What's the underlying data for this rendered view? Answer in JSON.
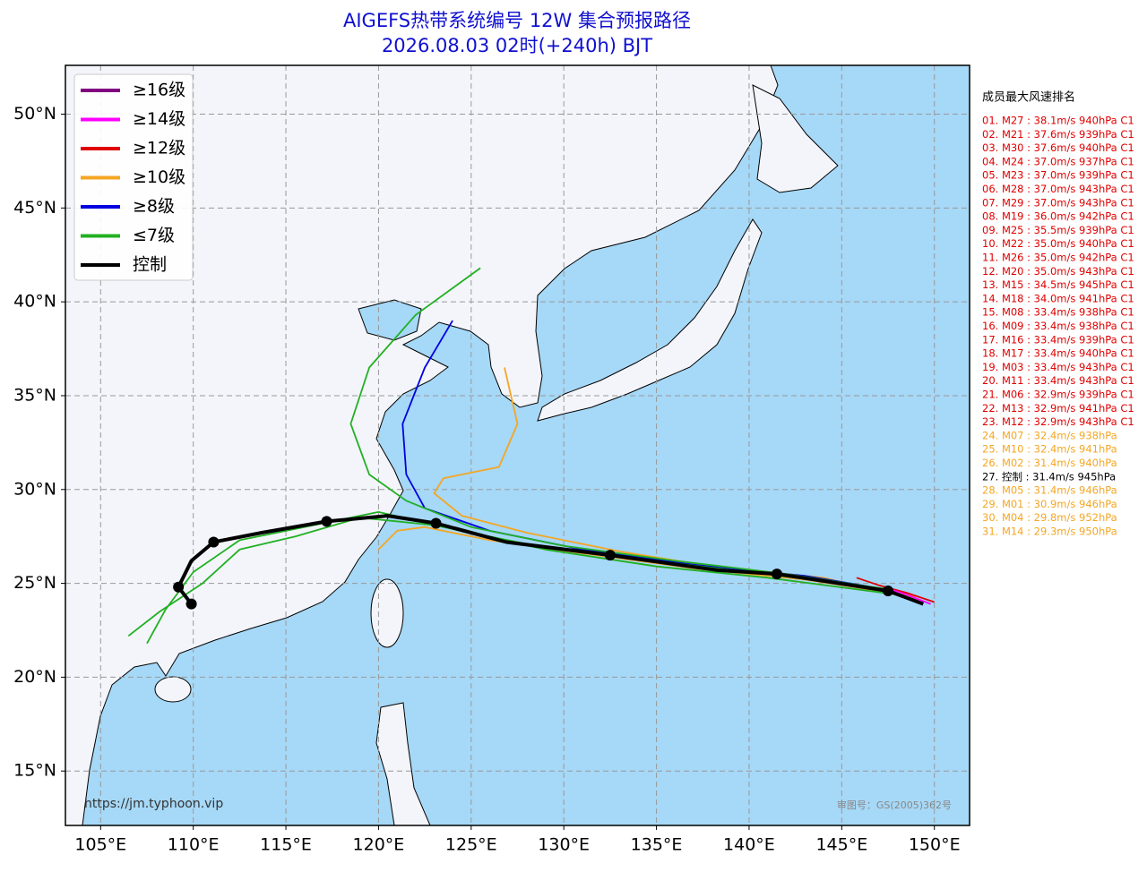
{
  "chart_data": {
    "type": "track-map",
    "title": "AIGEFS热带系统编号 12W 集合预报路径",
    "subtitle": "2026.08.03 02时(+240h) BJT",
    "xlim": [
      103.1,
      151.9
    ],
    "ylim": [
      12.1,
      52.6
    ],
    "xticks": [
      {
        "value": 105,
        "label": "105°E"
      },
      {
        "value": 110,
        "label": "110°E"
      },
      {
        "value": 115,
        "label": "115°E"
      },
      {
        "value": 120,
        "label": "120°E"
      },
      {
        "value": 125,
        "label": "125°E"
      },
      {
        "value": 130,
        "label": "130°E"
      },
      {
        "value": 135,
        "label": "135°E"
      },
      {
        "value": 140,
        "label": "140°E"
      },
      {
        "value": 145,
        "label": "145°E"
      },
      {
        "value": 150,
        "label": "150°E"
      }
    ],
    "yticks": [
      {
        "value": 15,
        "label": "15°N"
      },
      {
        "value": 20,
        "label": "20°N"
      },
      {
        "value": 25,
        "label": "25°N"
      },
      {
        "value": 30,
        "label": "30°N"
      },
      {
        "value": 35,
        "label": "35°N"
      },
      {
        "value": 40,
        "label": "40°N"
      },
      {
        "value": 45,
        "label": "45°N"
      },
      {
        "value": 50,
        "label": "50°N"
      }
    ],
    "grid": true,
    "legend": [
      {
        "name": "≥16级",
        "color": "#800080"
      },
      {
        "name": "≥14级",
        "color": "#ff00ff"
      },
      {
        "name": "≥12级",
        "color": "#e00000"
      },
      {
        "name": "≥10级",
        "color": "#f5a623"
      },
      {
        "name": "≥8级",
        "color": "#0000e0"
      },
      {
        "name": "≤7级",
        "color": "#22b022"
      },
      {
        "name": "控制",
        "color": "#000000"
      }
    ],
    "tracks": [
      {
        "color": "#f5a623",
        "x": [
          149.2,
          144,
          138,
          133,
          128,
          124.5,
          123,
          123.5,
          126.5,
          127.5,
          126.8
        ],
        "values": [
          24.1,
          25.3,
          25.9,
          26.7,
          27.7,
          28.6,
          29.8,
          30.6,
          31.2,
          33.5,
          36.5
        ]
      },
      {
        "color": "#f5a623",
        "x": [
          149,
          143,
          137,
          131,
          126,
          122.5,
          121,
          120
        ],
        "values": [
          24.3,
          25.2,
          25.8,
          26.6,
          27.3,
          28.0,
          27.8,
          26.8
        ]
      },
      {
        "color": "#0000e0",
        "x": [
          148.5,
          143,
          137,
          131,
          126,
          122.5,
          121.5,
          121.3,
          122.5,
          124
        ],
        "values": [
          24.5,
          25.4,
          26.0,
          26.8,
          27.8,
          29.0,
          30.8,
          33.5,
          36.5,
          39.0
        ]
      },
      {
        "color": "#22b022",
        "x": [
          148,
          142,
          136,
          130,
          125,
          121.5,
          119.5,
          118.5,
          119.5,
          122,
          125.5
        ],
        "values": [
          24.6,
          25.5,
          26.2,
          27.0,
          28.0,
          29.4,
          30.8,
          33.5,
          36.5,
          39.3,
          41.8
        ]
      },
      {
        "color": "#22b022",
        "x": [
          148,
          141,
          135,
          129,
          124,
          120,
          116,
          112.5,
          110,
          108.5,
          107.5
        ],
        "values": [
          24.4,
          25.3,
          25.9,
          26.8,
          27.9,
          28.8,
          28.0,
          27.3,
          25.6,
          23.6,
          21.8
        ]
      },
      {
        "color": "#22b022",
        "x": [
          147.5,
          140,
          134,
          128,
          123,
          119,
          115.5,
          112.5,
          110.5,
          108.2,
          106.5
        ],
        "values": [
          24.7,
          25.6,
          26.3,
          27.1,
          28.1,
          28.5,
          27.5,
          26.8,
          25.0,
          23.5,
          22.2
        ]
      },
      {
        "color": "#e00000",
        "x": [
          150,
          148.5,
          147,
          145.8
        ],
        "values": [
          24.0,
          24.5,
          24.9,
          25.3
        ]
      },
      {
        "color": "#ff00ff",
        "x": [
          149.8,
          148.5,
          147.3
        ],
        "values": [
          23.9,
          24.4,
          24.8
        ]
      }
    ],
    "control": {
      "color": "#000000",
      "x": [
        149.4,
        147.5,
        144.2,
        141.5,
        138.3,
        132.5,
        126.9,
        123.1,
        120.5,
        117.2,
        113.7,
        111.1,
        109.9,
        109.2,
        109.9
      ],
      "values": [
        23.9,
        24.6,
        25.1,
        25.5,
        25.7,
        26.5,
        27.2,
        28.2,
        28.6,
        28.3,
        27.7,
        27.2,
        26.2,
        24.8,
        23.9
      ]
    },
    "ranking": {
      "title": "成员最大风速排名",
      "items": [
        {
          "text": "01. M27 : 38.1m/s 940hPa C1",
          "color": "#e00000"
        },
        {
          "text": "02. M21 : 37.6m/s 939hPa C1",
          "color": "#e00000"
        },
        {
          "text": "03. M30 : 37.6m/s 940hPa C1",
          "color": "#e00000"
        },
        {
          "text": "04. M24 : 37.0m/s 937hPa C1",
          "color": "#e00000"
        },
        {
          "text": "05. M23 : 37.0m/s 939hPa C1",
          "color": "#e00000"
        },
        {
          "text": "06. M28 : 37.0m/s 943hPa C1",
          "color": "#e00000"
        },
        {
          "text": "07. M29 : 37.0m/s 943hPa C1",
          "color": "#e00000"
        },
        {
          "text": "08. M19 : 36.0m/s 942hPa C1",
          "color": "#e00000"
        },
        {
          "text": "09. M25 : 35.5m/s 939hPa C1",
          "color": "#e00000"
        },
        {
          "text": "10. M22 : 35.0m/s 940hPa C1",
          "color": "#e00000"
        },
        {
          "text": "11. M26 : 35.0m/s 942hPa C1",
          "color": "#e00000"
        },
        {
          "text": "12. M20 : 35.0m/s 943hPa C1",
          "color": "#e00000"
        },
        {
          "text": "13. M15 : 34.5m/s 945hPa C1",
          "color": "#e00000"
        },
        {
          "text": "14. M18 : 34.0m/s 941hPa C1",
          "color": "#e00000"
        },
        {
          "text": "15. M08 : 33.4m/s 938hPa C1",
          "color": "#e00000"
        },
        {
          "text": "16. M09 : 33.4m/s 938hPa C1",
          "color": "#e00000"
        },
        {
          "text": "17. M16 : 33.4m/s 939hPa C1",
          "color": "#e00000"
        },
        {
          "text": "18. M17 : 33.4m/s 940hPa C1",
          "color": "#e00000"
        },
        {
          "text": "19. M03 : 33.4m/s 943hPa C1",
          "color": "#e00000"
        },
        {
          "text": "20. M11 : 33.4m/s 943hPa C1",
          "color": "#e00000"
        },
        {
          "text": "21. M06 : 32.9m/s 939hPa C1",
          "color": "#e00000"
        },
        {
          "text": "22. M13 : 32.9m/s 941hPa C1",
          "color": "#e00000"
        },
        {
          "text": "23. M12 : 32.9m/s 943hPa C1",
          "color": "#e00000"
        },
        {
          "text": "24. M07 : 32.4m/s 938hPa",
          "color": "#f5a623"
        },
        {
          "text": "25. M10 : 32.4m/s 941hPa",
          "color": "#f5a623"
        },
        {
          "text": "26. M02 : 31.4m/s 940hPa",
          "color": "#f5a623"
        },
        {
          "text": "27. 控制 : 31.4m/s 945hPa",
          "color": "#000000"
        },
        {
          "text": "28. M05 : 31.4m/s 946hPa",
          "color": "#f5a623"
        },
        {
          "text": "29. M01 : 30.9m/s 946hPa",
          "color": "#f5a623"
        },
        {
          "text": "30. M04 : 29.8m/s 952hPa",
          "color": "#f5a623"
        },
        {
          "text": "31. M14 : 29.3m/s 950hPa",
          "color": "#f5a623"
        }
      ]
    },
    "source": "https://jm.typhoon.vip",
    "map_approval": "审图号：GS(2005)362号"
  }
}
